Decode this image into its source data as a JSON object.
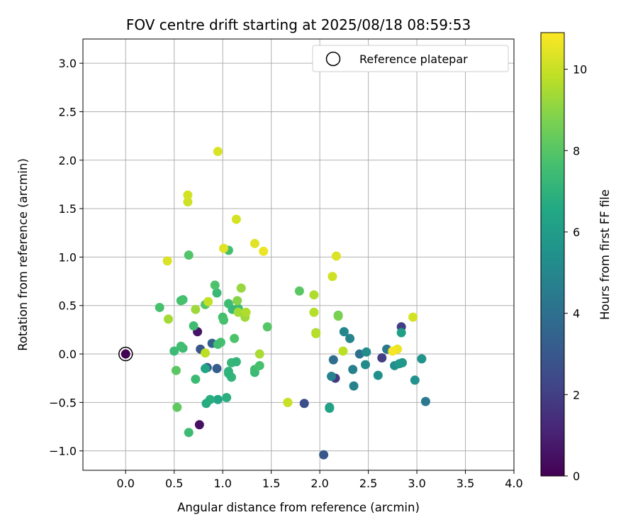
{
  "chart_data": {
    "type": "scatter",
    "title": "FOV centre drift starting at 2025/08/18 08:59:53",
    "xlabel": "Angular distance from reference (arcmin)",
    "ylabel": "Rotation from reference (arcmin)",
    "xlim": [
      -0.44,
      4.0
    ],
    "ylim": [
      -1.2,
      3.25
    ],
    "xticks": [
      "0.0",
      "0.5",
      "1.0",
      "1.5",
      "2.0",
      "2.5",
      "3.0",
      "3.5",
      "4.0"
    ],
    "yticks": [
      "−1.0",
      "−0.5",
      "0.0",
      "0.5",
      "1.0",
      "1.5",
      "2.0",
      "2.5",
      "3.0"
    ],
    "grid": true,
    "legend": {
      "placement": "top-right",
      "entries": [
        "Reference platepar"
      ]
    },
    "colorbar": {
      "label": "Hours from first FF file",
      "range": [
        0,
        10.9
      ],
      "ticks": [
        "0",
        "2",
        "4",
        "6",
        "8",
        "10"
      ],
      "colormap": "viridis"
    },
    "reference_point": {
      "x": 0.0,
      "y": 0.0,
      "hours": 0.0
    },
    "points": [
      {
        "x": 0.74,
        "y": 0.23,
        "h": 0.6
      },
      {
        "x": 0.76,
        "y": -0.73,
        "h": 0.5
      },
      {
        "x": 2.64,
        "y": -0.04,
        "h": 2.0
      },
      {
        "x": 2.84,
        "y": 0.28,
        "h": 2.0
      },
      {
        "x": 2.16,
        "y": -0.25,
        "h": 1.8
      },
      {
        "x": 1.84,
        "y": -0.51,
        "h": 2.6
      },
      {
        "x": 2.04,
        "y": -1.04,
        "h": 3.0
      },
      {
        "x": 0.77,
        "y": 0.05,
        "h": 2.9
      },
      {
        "x": 0.84,
        "y": -0.14,
        "h": 3.1
      },
      {
        "x": 0.94,
        "y": -0.15,
        "h": 3.2
      },
      {
        "x": 0.89,
        "y": 0.11,
        "h": 3.4
      },
      {
        "x": 2.14,
        "y": -0.06,
        "h": 3.9
      },
      {
        "x": 2.41,
        "y": 0.0,
        "h": 4.0
      },
      {
        "x": 2.69,
        "y": 0.05,
        "h": 4.4
      },
      {
        "x": 3.09,
        "y": -0.49,
        "h": 4.4
      },
      {
        "x": 2.34,
        "y": -0.16,
        "h": 4.7
      },
      {
        "x": 2.35,
        "y": -0.33,
        "h": 4.8
      },
      {
        "x": 2.31,
        "y": 0.16,
        "h": 4.9
      },
      {
        "x": 2.25,
        "y": 0.23,
        "h": 5.0
      },
      {
        "x": 2.12,
        "y": -0.23,
        "h": 4.8
      },
      {
        "x": 2.47,
        "y": -0.11,
        "h": 5.2
      },
      {
        "x": 2.48,
        "y": 0.02,
        "h": 5.3
      },
      {
        "x": 2.6,
        "y": -0.22,
        "h": 5.4
      },
      {
        "x": 2.77,
        "y": -0.12,
        "h": 5.4
      },
      {
        "x": 2.82,
        "y": -0.1,
        "h": 5.7
      },
      {
        "x": 2.85,
        "y": -0.09,
        "h": 5.8
      },
      {
        "x": 2.98,
        "y": -0.27,
        "h": 5.5
      },
      {
        "x": 3.05,
        "y": -0.05,
        "h": 5.6
      },
      {
        "x": 2.84,
        "y": 0.22,
        "h": 6.1
      },
      {
        "x": 2.1,
        "y": -0.55,
        "h": 5.9
      },
      {
        "x": 2.1,
        "y": -0.56,
        "h": 6.3
      },
      {
        "x": 0.82,
        "y": -0.15,
        "h": 6.4
      },
      {
        "x": 0.95,
        "y": -0.47,
        "h": 6.5
      },
      {
        "x": 1.04,
        "y": -0.45,
        "h": 6.9
      },
      {
        "x": 0.87,
        "y": -0.47,
        "h": 6.8
      },
      {
        "x": 0.83,
        "y": -0.51,
        "h": 6.7
      },
      {
        "x": 1.06,
        "y": -0.18,
        "h": 7.0
      },
      {
        "x": 1.09,
        "y": -0.24,
        "h": 7.1
      },
      {
        "x": 1.06,
        "y": -0.2,
        "h": 7.0
      },
      {
        "x": 1.09,
        "y": -0.09,
        "h": 7.2
      },
      {
        "x": 1.14,
        "y": -0.08,
        "h": 7.1
      },
      {
        "x": 0.72,
        "y": -0.26,
        "h": 7.4
      },
      {
        "x": 1.33,
        "y": -0.19,
        "h": 7.3
      },
      {
        "x": 1.33,
        "y": -0.16,
        "h": 7.5
      },
      {
        "x": 1.38,
        "y": -0.12,
        "h": 7.7
      },
      {
        "x": 0.59,
        "y": 0.06,
        "h": 7.4
      },
      {
        "x": 0.57,
        "y": 0.08,
        "h": 7.6
      },
      {
        "x": 0.5,
        "y": 0.03,
        "h": 7.4
      },
      {
        "x": 0.7,
        "y": 0.29,
        "h": 7.5
      },
      {
        "x": 0.98,
        "y": 0.12,
        "h": 7.7
      },
      {
        "x": 0.95,
        "y": 0.1,
        "h": 7.6
      },
      {
        "x": 1.12,
        "y": 0.16,
        "h": 7.8
      },
      {
        "x": 1.0,
        "y": 0.38,
        "h": 7.6
      },
      {
        "x": 1.01,
        "y": 0.35,
        "h": 7.7
      },
      {
        "x": 1.06,
        "y": 0.52,
        "h": 7.5
      },
      {
        "x": 1.1,
        "y": 0.46,
        "h": 7.3
      },
      {
        "x": 1.16,
        "y": 0.47,
        "h": 7.4
      },
      {
        "x": 0.94,
        "y": 0.63,
        "h": 7.3
      },
      {
        "x": 0.92,
        "y": 0.71,
        "h": 7.8
      },
      {
        "x": 1.06,
        "y": 1.07,
        "h": 7.6
      },
      {
        "x": 0.65,
        "y": 1.02,
        "h": 7.9
      },
      {
        "x": 0.59,
        "y": 0.56,
        "h": 7.6
      },
      {
        "x": 0.57,
        "y": 0.55,
        "h": 7.7
      },
      {
        "x": 0.35,
        "y": 0.48,
        "h": 7.7
      },
      {
        "x": 0.82,
        "y": 0.51,
        "h": 8.0
      },
      {
        "x": 0.52,
        "y": -0.17,
        "h": 8.1
      },
      {
        "x": 0.53,
        "y": -0.55,
        "h": 8.2
      },
      {
        "x": 0.65,
        "y": -0.81,
        "h": 7.4
      },
      {
        "x": 1.46,
        "y": 0.28,
        "h": 8.0
      },
      {
        "x": 1.79,
        "y": 0.65,
        "h": 8.1
      },
      {
        "x": 2.19,
        "y": 0.4,
        "h": 8.4
      },
      {
        "x": 2.19,
        "y": 0.39,
        "h": 8.7
      },
      {
        "x": 1.15,
        "y": 0.55,
        "h": 8.9
      },
      {
        "x": 1.19,
        "y": 0.68,
        "h": 9.2
      },
      {
        "x": 1.16,
        "y": 0.43,
        "h": 9.4
      },
      {
        "x": 1.23,
        "y": 0.38,
        "h": 9.3
      },
      {
        "x": 1.24,
        "y": 0.43,
        "h": 9.6
      },
      {
        "x": 1.38,
        "y": 0.0,
        "h": 9.5
      },
      {
        "x": 0.72,
        "y": 0.46,
        "h": 9.3
      },
      {
        "x": 0.85,
        "y": 0.54,
        "h": 9.9
      },
      {
        "x": 0.44,
        "y": 0.36,
        "h": 9.4
      },
      {
        "x": 0.82,
        "y": 0.01,
        "h": 9.8
      },
      {
        "x": 1.94,
        "y": 0.61,
        "h": 9.6
      },
      {
        "x": 1.94,
        "y": 0.43,
        "h": 9.7
      },
      {
        "x": 1.96,
        "y": 0.22,
        "h": 9.4
      },
      {
        "x": 1.96,
        "y": 0.21,
        "h": 9.7
      },
      {
        "x": 2.24,
        "y": 0.03,
        "h": 9.8
      },
      {
        "x": 1.67,
        "y": -0.5,
        "h": 9.6
      },
      {
        "x": 1.67,
        "y": -0.5,
        "h": 10.0
      },
      {
        "x": 2.13,
        "y": 0.8,
        "h": 10.1
      },
      {
        "x": 2.17,
        "y": 1.01,
        "h": 10.3
      },
      {
        "x": 1.14,
        "y": 1.39,
        "h": 10.2
      },
      {
        "x": 1.33,
        "y": 1.14,
        "h": 10.4
      },
      {
        "x": 1.42,
        "y": 1.06,
        "h": 10.6
      },
      {
        "x": 1.01,
        "y": 1.09,
        "h": 10.4
      },
      {
        "x": 0.43,
        "y": 0.96,
        "h": 10.3
      },
      {
        "x": 0.64,
        "y": 1.57,
        "h": 10.1
      },
      {
        "x": 0.64,
        "y": 1.64,
        "h": 10.2
      },
      {
        "x": 0.95,
        "y": 2.09,
        "h": 10.3
      },
      {
        "x": 2.96,
        "y": 0.38,
        "h": 10.2
      },
      {
        "x": 2.8,
        "y": 0.05,
        "h": 10.6
      },
      {
        "x": 2.75,
        "y": 0.03,
        "h": 10.8
      }
    ]
  }
}
